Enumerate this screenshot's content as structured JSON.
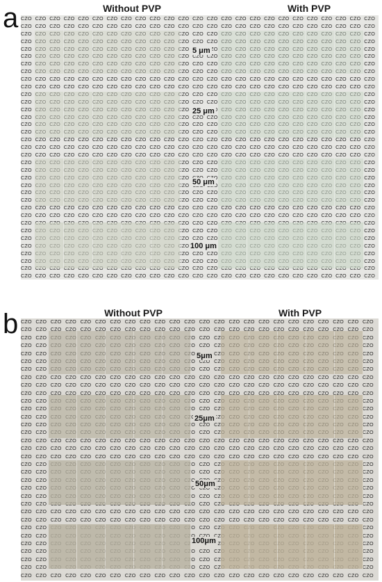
{
  "repeated_text": "CZO",
  "panels": [
    {
      "letter": "a",
      "titles": {
        "left": "Without PVP",
        "right": "With PVP"
      },
      "thickness_labels": [
        "5 μm",
        "25 μm",
        "50 μm",
        "100 μm"
      ],
      "colors": {
        "background": "#e6e6e3",
        "film_without_pvp": "#cfd3c4",
        "film_with_pvp": "#cbd8c8"
      }
    },
    {
      "letter": "b",
      "titles": {
        "left": "Without PVP",
        "right": "With PVP"
      },
      "thickness_labels": [
        "5μm",
        "25μm",
        "50μm",
        "100μm"
      ],
      "colors": {
        "background": "#dcdad5",
        "film_without_pvp": "#b8b3a2",
        "film_with_pvp": "#bdb29a"
      }
    }
  ]
}
